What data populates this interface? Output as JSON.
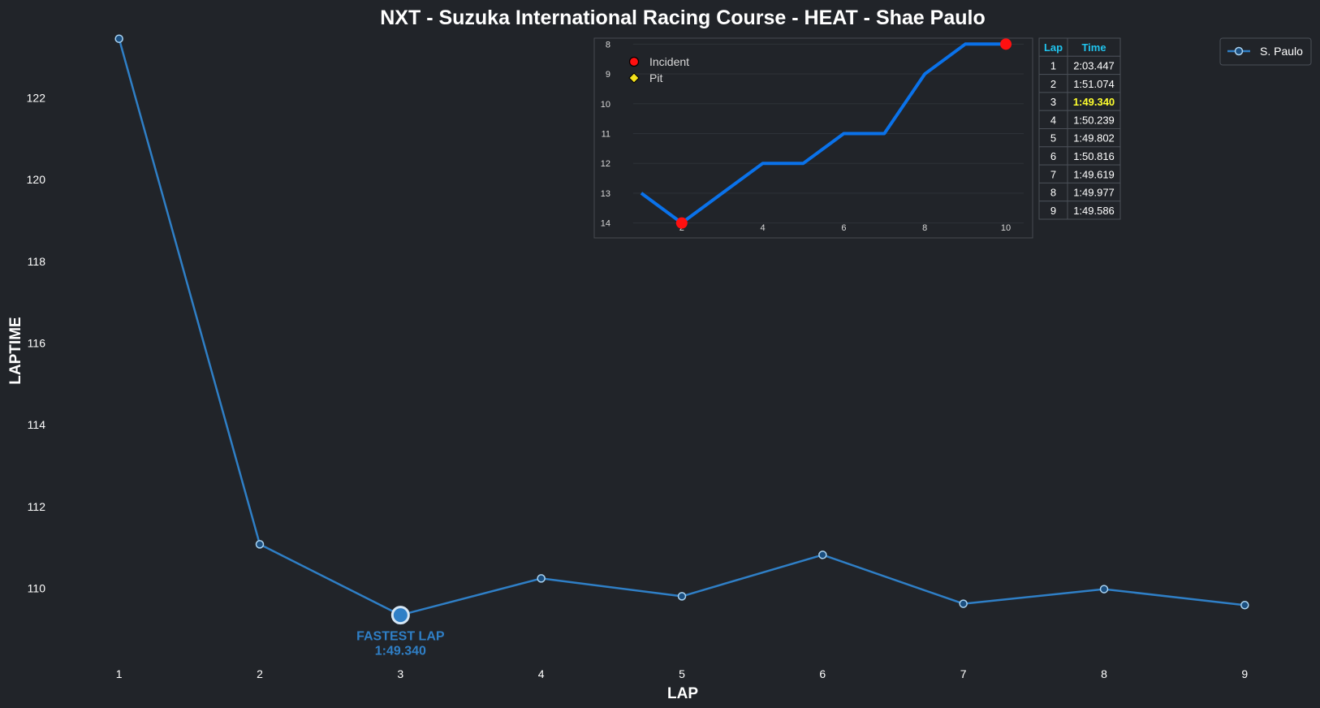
{
  "chart_data": [
    {
      "type": "line",
      "title": "NXT - Suzuka International Racing Course - HEAT - Shae Paulo",
      "xlabel": "LAP",
      "ylabel": "LAPTIME",
      "x": [
        1,
        2,
        3,
        4,
        5,
        6,
        7,
        8,
        9
      ],
      "xticks": [
        "1",
        "2",
        "3",
        "4",
        "5",
        "6",
        "7",
        "8",
        "9"
      ],
      "yticks": [
        110,
        112,
        114,
        116,
        118,
        120,
        122
      ],
      "xlim": [
        0.5,
        9.5
      ],
      "ylim": [
        108.2,
        123.6
      ],
      "series": [
        {
          "name": "S. Paulo",
          "values": [
            123.447,
            111.074,
            109.34,
            110.239,
            109.802,
            110.816,
            109.619,
            109.977,
            109.586
          ]
        }
      ],
      "annotation": {
        "lap": 3,
        "label": "FASTEST LAP",
        "value": "1:49.340"
      },
      "legend": "top-right",
      "grid": false
    },
    {
      "type": "line",
      "title": "",
      "xlabel": "",
      "ylabel": "",
      "x": [
        1,
        2,
        3,
        4,
        5,
        6,
        7,
        8,
        9,
        10
      ],
      "xticks": [
        "2",
        "4",
        "6",
        "8",
        "10"
      ],
      "yticks": [
        8,
        9,
        10,
        11,
        12,
        13,
        14
      ],
      "xlim": [
        0.0,
        10.5
      ],
      "ylim": [
        14.5,
        7.8
      ],
      "series": [
        {
          "name": "",
          "values": [
            13,
            14,
            13,
            12,
            12,
            11,
            11,
            9,
            8,
            8
          ]
        }
      ],
      "incidents": [
        [
          2,
          14
        ],
        [
          10,
          8
        ]
      ],
      "pits": [],
      "legend_entries": [
        "Incident",
        "Pit"
      ],
      "legend": "top-left",
      "grid": true,
      "inverted_y": true
    },
    {
      "type": "table",
      "columns": [
        "Lap",
        "Time"
      ],
      "rows": [
        [
          "1",
          "2:03.447"
        ],
        [
          "2",
          "1:51.074"
        ],
        [
          "3",
          "1:49.340"
        ],
        [
          "4",
          "1:50.239"
        ],
        [
          "5",
          "1:49.802"
        ],
        [
          "6",
          "1:50.816"
        ],
        [
          "7",
          "1:49.619"
        ],
        [
          "8",
          "1:49.977"
        ],
        [
          "9",
          "1:49.586"
        ]
      ],
      "highlight_row": 2
    }
  ],
  "colors": {
    "background": "#212429",
    "text": "#ffffff",
    "main_line": "#2f7fc6",
    "marker_fill": "#1b4f80",
    "marker_edge": "#a9d3f2",
    "annotation": "#2f7fc6",
    "position_line": "#0a72ea",
    "incident": "#ff1010",
    "pit": "#f4e21c",
    "table_header": "#20c4ee",
    "table_highlight": "#ffff2e",
    "table_border": "#4a4f57",
    "inset_border": "#464a51",
    "inset_grid": "#2e3238"
  }
}
